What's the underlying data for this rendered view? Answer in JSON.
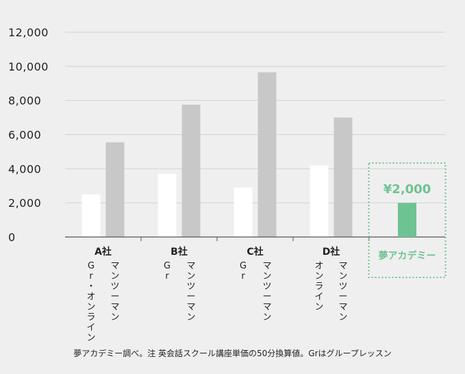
{
  "chart_data": {
    "type": "bar",
    "ylim": [
      0,
      12000
    ],
    "yticks": [
      "0",
      "2,000",
      "4,000",
      "6,000",
      "8,000",
      "10,000",
      "12,000"
    ],
    "grid": true,
    "categories": [
      "A社",
      "B社",
      "C社",
      "D社",
      "夢アカデミー"
    ],
    "series": [
      {
        "values": [
          2500,
          3700,
          2900,
          4200,
          null
        ],
        "color": "#ffffff",
        "labels": [
          "Gr・オンライン",
          "Gr",
          "Gr",
          "オンライン",
          ""
        ]
      },
      {
        "values": [
          5550,
          7750,
          9650,
          7000,
          null
        ],
        "color": "#c8c8c8",
        "labels": [
          "マンツーマン",
          "マンツーマン",
          "マンツーマン",
          "マンツーマン",
          ""
        ]
      }
    ],
    "highlight": {
      "category": "夢アカデミー",
      "value": 2000,
      "value_label": "¥2,000",
      "color": "#6ec392"
    }
  },
  "footnote": "夢アカデミー調べ。注 英会話スクール講座単価の50分換算値。Grはグループレッスン"
}
